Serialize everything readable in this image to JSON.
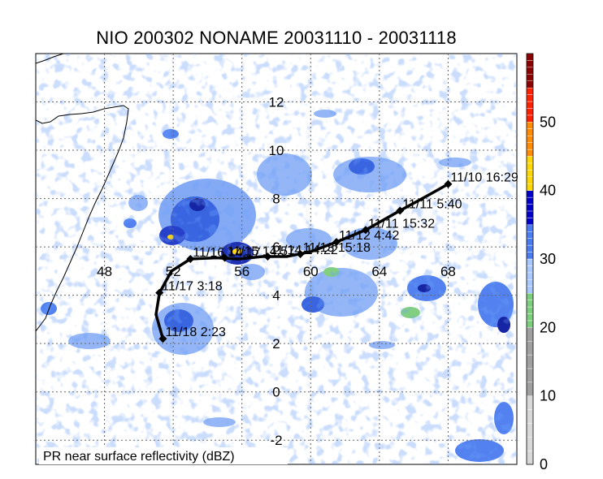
{
  "title": "NIO 200302 NONAME 20031110 - 20031118",
  "caption": "PR near surface reflectivity (dBZ)",
  "chart_data": {
    "type": "map",
    "title": "NIO 200302 NONAME 20031110 - 20031118",
    "variable": "PR near surface reflectivity (dBZ)",
    "lon_range": [
      44,
      72
    ],
    "lat_range": [
      -3,
      14
    ],
    "lon_ticks": [
      {
        "value": 48,
        "label": "48"
      },
      {
        "value": 52,
        "label": "52"
      },
      {
        "value": 56,
        "label": "56"
      },
      {
        "value": 60,
        "label": "60"
      },
      {
        "value": 64,
        "label": "64"
      },
      {
        "value": 68,
        "label": "68"
      }
    ],
    "lat_ticks": [
      {
        "value": 12,
        "label": "12"
      },
      {
        "value": 10,
        "label": "10"
      },
      {
        "value": 8,
        "label": "8"
      },
      {
        "value": 6,
        "label": "6"
      },
      {
        "value": 4,
        "label": "4"
      },
      {
        "value": 2,
        "label": "2"
      },
      {
        "value": 0,
        "label": "0"
      },
      {
        "value": -2,
        "label": "-2"
      }
    ],
    "track": [
      {
        "lon": 68.0,
        "lat": 8.6
      },
      {
        "lon": 67.0,
        "lat": 8.2
      },
      {
        "lon": 65.2,
        "lat": 7.5
      },
      {
        "lon": 63.2,
        "lat": 6.7
      },
      {
        "lon": 61.5,
        "lat": 6.2
      },
      {
        "lon": 60.0,
        "lat": 5.8
      },
      {
        "lon": 58.6,
        "lat": 5.6
      },
      {
        "lon": 57.2,
        "lat": 5.6
      },
      {
        "lon": 55.8,
        "lat": 5.5
      },
      {
        "lon": 54.5,
        "lat": 5.55
      },
      {
        "lon": 53.0,
        "lat": 5.5
      },
      {
        "lon": 51.9,
        "lat": 5.0
      },
      {
        "lon": 51.2,
        "lat": 4.1
      },
      {
        "lon": 51.0,
        "lat": 3.2
      },
      {
        "lon": 51.4,
        "lat": 2.2
      }
    ],
    "fixes": [
      {
        "lon": 68.0,
        "lat": 8.6,
        "label": "11/10 16:29"
      },
      {
        "lon": 65.2,
        "lat": 7.5,
        "label": "11/11 5:40"
      },
      {
        "lon": 63.2,
        "lat": 6.7,
        "label": "11/11 15:32"
      },
      {
        "lon": 61.5,
        "lat": 6.2,
        "label": "11/12 4:42"
      },
      {
        "lon": 59.4,
        "lat": 5.7,
        "label": "11/13 15:18"
      },
      {
        "lon": 57.5,
        "lat": 5.6,
        "label": "11/14 14:22"
      },
      {
        "lon": 55.0,
        "lat": 5.55,
        "label": "11/15 14:57"
      },
      {
        "lon": 53.0,
        "lat": 5.5,
        "label": "11/16 14:17"
      },
      {
        "lon": 51.2,
        "lat": 4.1,
        "label": "11/17 3:18"
      },
      {
        "lon": 51.4,
        "lat": 2.2,
        "label": "11/18 2:23"
      }
    ],
    "colorbar": {
      "range": [
        0,
        60
      ],
      "tick_labels": [
        "0",
        "10",
        "20",
        "30",
        "40",
        "50"
      ],
      "bands": [
        {
          "from": 0,
          "to": 10,
          "color": "#d8d8d8"
        },
        {
          "from": 10,
          "to": 20,
          "color": "#a0a0a0"
        },
        {
          "from": 20,
          "to": 25,
          "color": "#7ccd7c"
        },
        {
          "from": 25,
          "to": 30,
          "color": "#a8c8ff"
        },
        {
          "from": 30,
          "to": 35,
          "color": "#4a7cf0"
        },
        {
          "from": 35,
          "to": 40,
          "color": "#0000c8"
        },
        {
          "from": 40,
          "to": 45,
          "color": "#ffd700"
        },
        {
          "from": 45,
          "to": 50,
          "color": "#ff8c00"
        },
        {
          "from": 50,
          "to": 55,
          "color": "#ff2000"
        },
        {
          "from": 55,
          "to": 60,
          "color": "#8b0000"
        }
      ]
    },
    "gridlines": true
  },
  "colors": {
    "track": "#000000",
    "coast": "#000000",
    "grid": "#666666"
  }
}
